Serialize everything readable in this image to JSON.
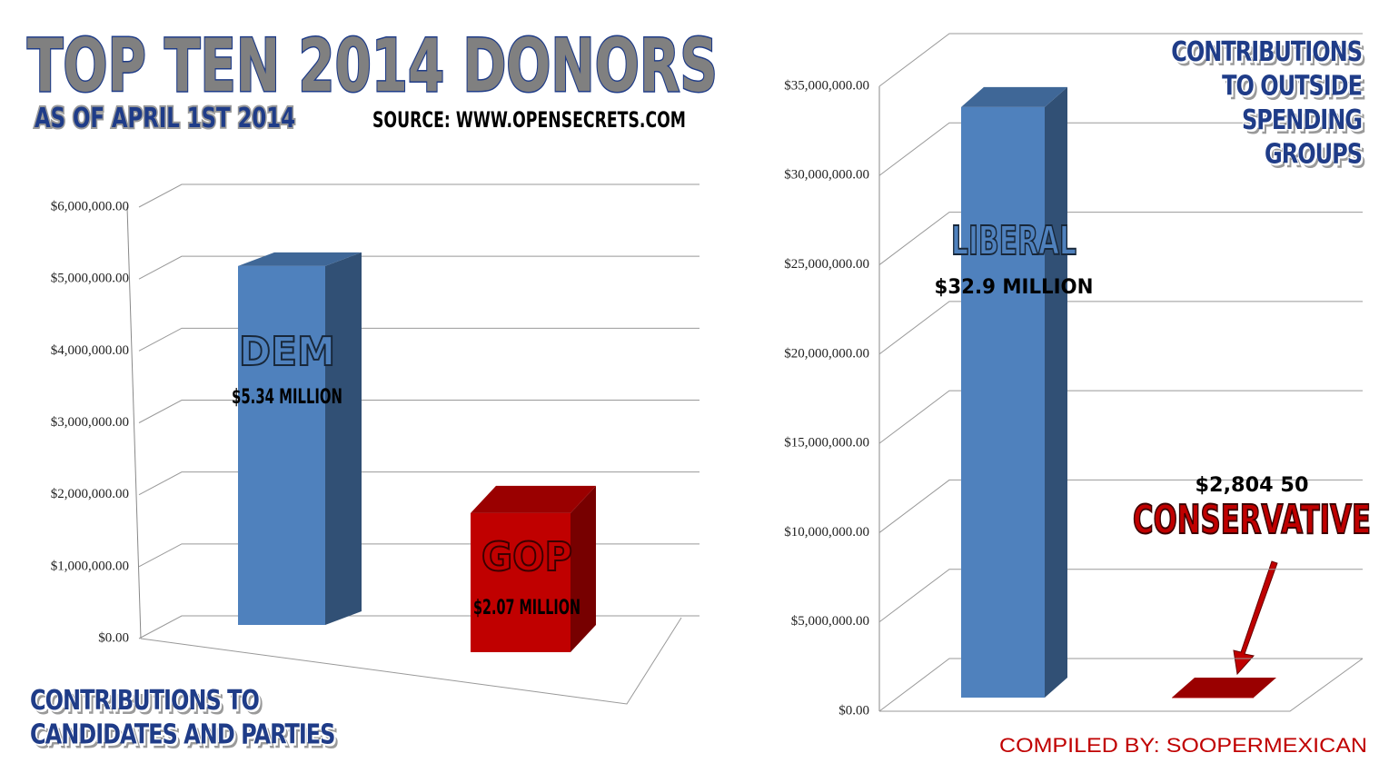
{
  "header": {
    "title": "TOP TEN 2014 DONORS",
    "subtitle": "AS OF APRIL 1ST 2014",
    "source": "SOURCE: WWW.OPENSECRETS.COM"
  },
  "footer": "COMPILED BY: SOOPERMEXICAN",
  "chart_data": [
    {
      "type": "bar",
      "title": "CONTRIBUTIONS TO CANDIDATES AND PARTIES",
      "categories": [
        "DEM",
        "GOP"
      ],
      "values": [
        5340000,
        2070000
      ],
      "value_labels": [
        "$5.34 MILLION",
        "$2.07 MILLION"
      ],
      "colors": [
        "#4f81bd",
        "#c00000"
      ],
      "ylim": [
        0,
        6000000
      ],
      "yticks": [
        {
          "value": 0,
          "label": "$0.00"
        },
        {
          "value": 1000000,
          "label": "$1,000,000.00"
        },
        {
          "value": 2000000,
          "label": "$2,000,000.00"
        },
        {
          "value": 3000000,
          "label": "$3,000,000.00"
        },
        {
          "value": 4000000,
          "label": "$4,000,000.00"
        },
        {
          "value": 5000000,
          "label": "$5,000,000.00"
        },
        {
          "value": 6000000,
          "label": "$6,000,000.00"
        }
      ],
      "grid": true
    },
    {
      "type": "bar",
      "title": "CONTRIBUTIONS TO OUTSIDE SPENDING GROUPS",
      "categories": [
        "LIBERAL",
        "CONSERVATIVE"
      ],
      "values": [
        32900000,
        2804.5
      ],
      "value_labels": [
        "$32.9 MILLION",
        "$2,804 50"
      ],
      "colors": [
        "#4f81bd",
        "#c00000"
      ],
      "ylim": [
        0,
        35000000
      ],
      "yticks": [
        {
          "value": 0,
          "label": "$0.00"
        },
        {
          "value": 5000000,
          "label": "$5,000,000.00"
        },
        {
          "value": 10000000,
          "label": "$10,000,000.00"
        },
        {
          "value": 15000000,
          "label": "$15,000,000.00"
        },
        {
          "value": 20000000,
          "label": "$20,000,000.00"
        },
        {
          "value": 25000000,
          "label": "$25,000,000.00"
        },
        {
          "value": 30000000,
          "label": "$30,000,000.00"
        },
        {
          "value": 35000000,
          "label": "$35,000,000.00"
        }
      ],
      "grid": true
    }
  ]
}
